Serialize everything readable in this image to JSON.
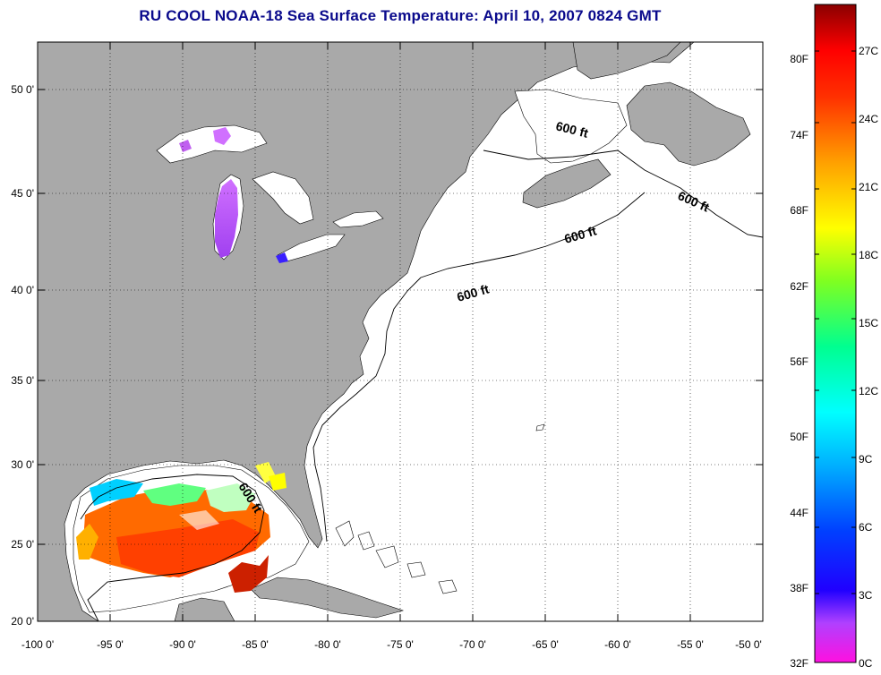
{
  "title": "RU COOL  NOAA-18  Sea Surface Temperature:  April 10, 2007 0824 GMT",
  "map": {
    "lon_ticks": [
      "-100 0'",
      "-95 0'",
      "-90 0'",
      "-85 0'",
      "-80 0'",
      "-75 0'",
      "-70 0'",
      "-65 0'",
      "-60 0'",
      "-55 0'",
      "-50 0'"
    ],
    "lat_ticks": [
      "50 0'",
      "45 0'",
      "40 0'",
      "35 0'",
      "30 0'",
      "25 0'",
      "20 0'"
    ],
    "contour_labels": [
      "600 ft",
      "600 ft",
      "600 ft",
      "600 ft",
      "600 ft"
    ],
    "colors": {
      "land": "#a9a9a9",
      "ocean": "#ffffff",
      "title": "#0a0a8c"
    }
  },
  "colorbar": {
    "fahrenheit_labels": [
      "80F",
      "74F",
      "68F",
      "62F",
      "56F",
      "50F",
      "44F",
      "38F",
      "32F"
    ],
    "celsius_labels": [
      "27C",
      "24C",
      "21C",
      "18C",
      "15C",
      "12C",
      "9C",
      "6C",
      "3C",
      "0C"
    ]
  }
}
